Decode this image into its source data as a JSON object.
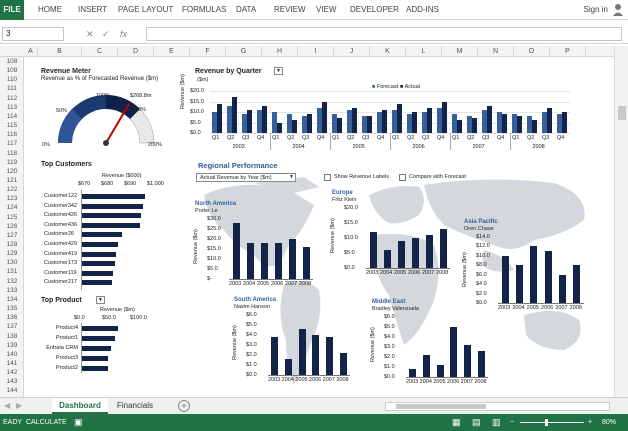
{
  "ribbon": {
    "file": "FILE",
    "tabs": [
      "HOME",
      "INSERT",
      "PAGE LAYOUT",
      "FORMULAS",
      "DATA",
      "REVIEW",
      "VIEW",
      "DEVELOPER",
      "ADD-INS"
    ],
    "signin": "Sign in"
  },
  "formula_bar": {
    "name_box": "3",
    "formula": ""
  },
  "columns": [
    "A",
    "B",
    "C",
    "D",
    "E",
    "F",
    "G",
    "H",
    "I",
    "J",
    "K",
    "L",
    "M",
    "N",
    "O",
    "P"
  ],
  "rows": [
    "108",
    "109",
    "110",
    "111",
    "112",
    "113",
    "114",
    "115",
    "116",
    "117",
    "118",
    "119",
    "120",
    "121",
    "122",
    "123",
    "124",
    "125",
    "126",
    "127",
    "128",
    "129",
    "130",
    "131",
    "132",
    "133",
    "134",
    "135",
    "136",
    "137",
    "138",
    "139",
    "140",
    "141",
    "142",
    "143",
    "144"
  ],
  "revenue_meter": {
    "title": "Revenue Meter",
    "subtitle": "Revenue as % of Forecasted Revenue ($m)",
    "labels": {
      "p0": "0%",
      "p50": "50%",
      "p100": "100%",
      "p150": "150%",
      "p200": "200%",
      "value": "$268.8m"
    },
    "needle_fraction": 0.67
  },
  "top_customers": {
    "title": "Top Customers",
    "axis_title": "Revenue ($000)",
    "ticks": [
      "$670",
      "$680",
      "$690",
      "$1,000"
    ],
    "items": [
      {
        "name": "Customer122",
        "value": 0.95
      },
      {
        "name": "Customer342",
        "value": 0.92
      },
      {
        "name": "Customer426",
        "value": 0.9
      },
      {
        "name": "Customer436",
        "value": 0.88
      },
      {
        "name": "Customer26",
        "value": 0.6
      },
      {
        "name": "Customer429",
        "value": 0.55
      },
      {
        "name": "Customer419",
        "value": 0.52
      },
      {
        "name": "Customer173",
        "value": 0.5
      },
      {
        "name": "Customer119",
        "value": 0.47
      },
      {
        "name": "Customer217",
        "value": 0.45
      }
    ]
  },
  "top_product": {
    "title": "Top Product",
    "axis_title": "Revenue ($m)",
    "ticks": [
      "$0.0",
      "$50.0",
      "$100.0"
    ],
    "items": [
      {
        "name": "Product4",
        "value": 0.55
      },
      {
        "name": "Product1",
        "value": 0.5
      },
      {
        "name": "Entrata CRM",
        "value": 0.45
      },
      {
        "name": "Product3",
        "value": 0.4
      },
      {
        "name": "Product2",
        "value": 0.4
      }
    ]
  },
  "revenue_by_quarter": {
    "title": "Revenue by Quarter",
    "unit": "($m)",
    "ylabel": "Revenue ($m)",
    "legend": [
      "Forecast",
      "Actual"
    ],
    "yticks": [
      "$20.0",
      "$15.0",
      "$10.0",
      "$5.0",
      "$0.0"
    ],
    "quarters": [
      "Q1",
      "Q2",
      "Q3",
      "Q4"
    ],
    "years": [
      "2003",
      "2004",
      "2005",
      "2006",
      "2007",
      "2008"
    ],
    "forecast": [
      10,
      13,
      9,
      11,
      10,
      9,
      8,
      12,
      9,
      11,
      8,
      10,
      11,
      9,
      10,
      12,
      9,
      8,
      11,
      10,
      9,
      8,
      10,
      9
    ],
    "actual": [
      14,
      17,
      11,
      13,
      5,
      6,
      9,
      15,
      7,
      12,
      8,
      11,
      14,
      10,
      12,
      15,
      6,
      7,
      13,
      9,
      8,
      6,
      12,
      10
    ]
  },
  "regional": {
    "title": "Regional Performance",
    "dropdown": "Actual Revenue by Year ($m)",
    "show_labels": "Show Revenue Labels",
    "compare": "Compare with Forecast",
    "years": [
      "2003",
      "2004",
      "2005",
      "2006",
      "2007",
      "2008"
    ],
    "ylabel": "Revenue ($m)",
    "north_america": {
      "title": "North America",
      "manager": "Porter Le",
      "yticks": [
        "$30.0",
        "$25.0",
        "$20.0",
        "$15.0",
        "$10.0",
        "$5.0",
        "$-"
      ],
      "values": [
        28,
        18,
        18,
        18,
        20,
        16
      ]
    },
    "europe": {
      "title": "Europe",
      "manager": "Fritz Klein",
      "yticks": [
        "$20.0",
        "$15.0",
        "$10.0",
        "$5.0",
        "$0.0"
      ],
      "values": [
        12,
        6,
        9,
        10,
        11,
        13
      ]
    },
    "asia_pacific": {
      "title": "Asia Pacific",
      "manager": "Oren Chase",
      "yticks": [
        "$14.0",
        "$12.0",
        "$10.0",
        "$8.0",
        "$6.0",
        "$4.0",
        "$2.0",
        "$0.0"
      ],
      "values": [
        10,
        8,
        12,
        11,
        6,
        8
      ]
    },
    "south_america": {
      "title": "South America",
      "manager": "Nasim Hanson",
      "yticks": [
        "$6.0",
        "$5.0",
        "$4.0",
        "$3.0",
        "$2.0",
        "$1.0",
        "$0.0"
      ],
      "values": [
        3.8,
        1.6,
        4.6,
        4.0,
        3.8,
        2.2
      ]
    },
    "middle_east": {
      "title": "Middle East",
      "manager": "Bradley Valenzuela",
      "yticks": [
        "$6.0",
        "$5.0",
        "$4.0",
        "$3.0",
        "$2.0",
        "$1.0",
        "$0.0"
      ],
      "values": [
        0.8,
        2.2,
        1.2,
        5.0,
        3.2,
        2.6
      ]
    }
  },
  "sheet_tabs": [
    "Dashboard",
    "Financials"
  ],
  "status": {
    "ready": "EADY",
    "calculate": "CALCULATE",
    "zoom": "80%"
  },
  "colors": {
    "excel_green": "#217346",
    "bar_dark": "#13244a",
    "bar_light": "#365f9e"
  }
}
